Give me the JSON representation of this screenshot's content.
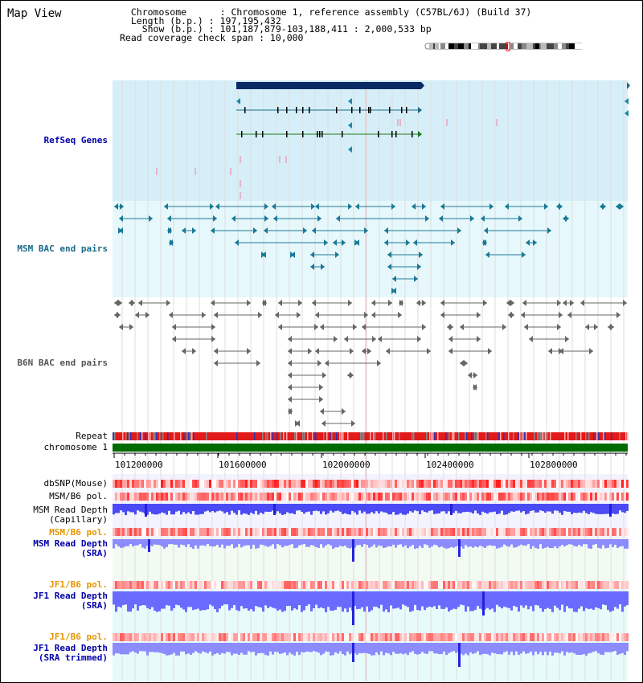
{
  "header": {
    "title": "Map View",
    "info_lines": [
      "  Chromosome      : Chromosome 1, reference assembly (C57BL/6J) (Build 37)",
      "  Length (b.p.) : 197,195,432",
      "    Show (b.p.) : 101,187,879-103,188,411 : 2,000,533 bp",
      "Read coverage check span : 10,000"
    ]
  },
  "tracks": {
    "refseq": {
      "label": "RefSeq Genes",
      "color": "#0000aa"
    },
    "msm_bac": {
      "label": "MSM BAC end pairs",
      "color": "#1a6a8a"
    },
    "b6n_bac": {
      "label": "B6N BAC end pairs",
      "color": "#555555"
    },
    "repeat": {
      "label": "Repeat"
    },
    "chromosome": {
      "label": "chromosome 1"
    },
    "dbsnp": {
      "label": "dbSNP(Mouse)"
    },
    "msm_b6_pol_1": {
      "label": "MSM/B6 pol."
    },
    "msm_depth_cap": {
      "label": "MSM Read Depth\n(Capillary)"
    },
    "msm_b6_pol_2": {
      "label": "MSM/B6 pol.",
      "color": "#e69500"
    },
    "msm_depth_sra": {
      "label": "MSM Read Depth\n(SRA)",
      "color": "#0000aa"
    },
    "jf1_b6_pol_1": {
      "label": "JF1/B6 pol.",
      "color": "#e69500"
    },
    "jf1_depth_sra": {
      "label": "JF1 Read Depth\n(SRA)",
      "color": "#0000aa"
    },
    "jf1_b6_pol_2": {
      "label": "JF1/B6 pol.",
      "color": "#e69500"
    },
    "jf1_depth_trim": {
      "label": "JF1 Read Depth\n(SRA trimmed)",
      "color": "#0000aa"
    }
  },
  "scale": {
    "ticks": [
      "101200000",
      "101600000",
      "102000000",
      "102400000",
      "102800000"
    ]
  },
  "colors": {
    "refseq_bg": "#d6eef8",
    "msm_bg": "#e0f7fa",
    "repeat_red": "#e21a1a",
    "chromosome_green": "#006b00",
    "depth_blue": "#5252ff",
    "depth_light": "#8c8cff"
  }
}
